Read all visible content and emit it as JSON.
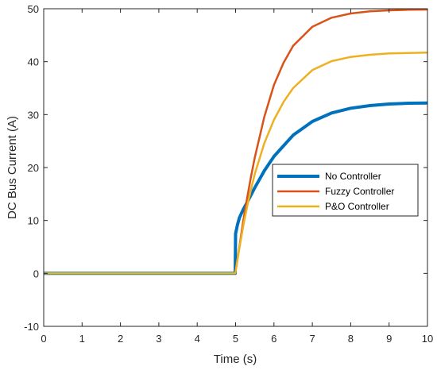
{
  "chart_data": {
    "type": "line",
    "title": "",
    "xlabel": "Time (s)",
    "ylabel": "DC Bus Current (A)",
    "xlim": [
      0,
      10
    ],
    "ylim": [
      -10,
      50
    ],
    "xticks": [
      0,
      1,
      2,
      3,
      4,
      5,
      6,
      7,
      8,
      9,
      10
    ],
    "yticks": [
      -10,
      0,
      10,
      20,
      30,
      40,
      50
    ],
    "grid": false,
    "legend_position": "middle-right",
    "series": [
      {
        "name": "No Controller",
        "color": "#0072BD",
        "line_width": "thick",
        "x": [
          0,
          4.99,
          5.0,
          5.05,
          5.1,
          5.2,
          5.3,
          5.5,
          5.75,
          6.0,
          6.5,
          7.0,
          7.5,
          8.0,
          8.5,
          9.0,
          9.5,
          10.0
        ],
        "y": [
          0,
          0,
          7.5,
          9.2,
          10.5,
          12.1,
          13.4,
          16.2,
          19.4,
          22.1,
          26.1,
          28.7,
          30.3,
          31.2,
          31.7,
          32.0,
          32.15,
          32.2
        ]
      },
      {
        "name": "Fuzzy Controller",
        "color": "#D95319",
        "line_width": "normal",
        "x": [
          0,
          4.99,
          5.0,
          5.1,
          5.2,
          5.3,
          5.4,
          5.5,
          5.75,
          6.0,
          6.25,
          6.5,
          7.0,
          7.5,
          8.0,
          8.5,
          9.0,
          9.5,
          10.0
        ],
        "y": [
          0,
          0,
          0.5,
          5.0,
          10.0,
          14.2,
          18.2,
          21.9,
          29.6,
          35.6,
          39.8,
          43.0,
          46.6,
          48.3,
          49.1,
          49.5,
          49.7,
          49.8,
          49.85
        ]
      },
      {
        "name": "P&O Controller",
        "color": "#EDB120",
        "line_width": "normal",
        "x": [
          0,
          4.99,
          5.0,
          5.1,
          5.2,
          5.3,
          5.4,
          5.5,
          5.75,
          6.0,
          6.25,
          6.5,
          7.0,
          7.5,
          8.0,
          8.5,
          9.0,
          9.5,
          10.0
        ],
        "y": [
          0,
          0,
          0.3,
          4.8,
          9.0,
          12.6,
          15.8,
          18.8,
          24.6,
          29.0,
          32.4,
          35.0,
          38.4,
          40.1,
          40.9,
          41.3,
          41.55,
          41.65,
          41.7
        ]
      }
    ]
  }
}
